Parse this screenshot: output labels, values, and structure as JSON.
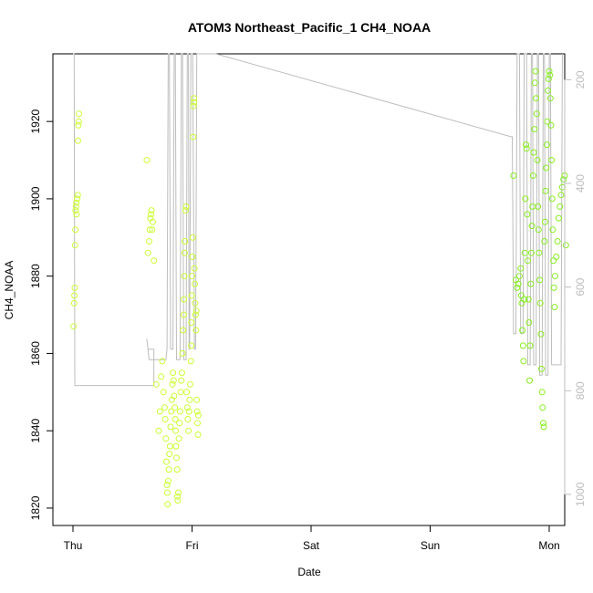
{
  "chart_data": {
    "type": "scatter",
    "title": "ATOM3 Northeast_Pacific_1 CH4_NOAA",
    "xlabel": "Date",
    "ylabel": "CH4_NOAA",
    "x_ticks": [
      "Thu",
      "Fri",
      "Sat",
      "Sun",
      "Mon"
    ],
    "x_range_days": [
      -0.08,
      4.15
    ],
    "ylim": [
      1815.5,
      1937.5
    ],
    "y_ticks": [
      1820,
      1840,
      1860,
      1880,
      1900,
      1920
    ],
    "y2_ticks": [
      200,
      400,
      600,
      800,
      1000
    ],
    "y2lim": [
      1060,
      150
    ],
    "y2_reversed": true,
    "grid": false,
    "colors": {
      "points_early": "#ccff33",
      "points_late": "#88ee22",
      "pressure_line": "#bdbdbd",
      "axis": "#000000",
      "right_axis": "#bdbdbd"
    },
    "series": [
      {
        "points": [
          [
            0.005,
            1867
          ],
          [
            0.01,
            1873
          ],
          [
            0.012,
            1875
          ],
          [
            0.015,
            1877
          ],
          [
            0.018,
            1888
          ],
          [
            0.02,
            1892
          ],
          [
            0.022,
            1897
          ],
          [
            0.025,
            1898
          ],
          [
            0.028,
            1899
          ],
          [
            0.03,
            1896
          ],
          [
            0.035,
            1900
          ],
          [
            0.04,
            1901
          ],
          [
            0.042,
            1915
          ],
          [
            0.045,
            1919
          ],
          [
            0.048,
            1920
          ],
          [
            0.05,
            1922
          ],
          [
            0.62,
            1910
          ],
          [
            0.63,
            1886
          ],
          [
            0.64,
            1889
          ],
          [
            0.645,
            1892
          ],
          [
            0.65,
            1895
          ],
          [
            0.655,
            1896
          ],
          [
            0.66,
            1897
          ],
          [
            0.665,
            1892
          ],
          [
            0.67,
            1894
          ],
          [
            0.68,
            1884
          ],
          [
            0.7,
            1852
          ],
          [
            0.72,
            1840
          ],
          [
            0.73,
            1845
          ],
          [
            0.74,
            1854
          ],
          [
            0.75,
            1858
          ],
          [
            0.76,
            1850
          ],
          [
            0.77,
            1846
          ],
          [
            0.775,
            1843
          ],
          [
            0.78,
            1838
          ],
          [
            0.785,
            1832
          ],
          [
            0.79,
            1826
          ],
          [
            0.792,
            1824
          ],
          [
            0.795,
            1821
          ],
          [
            0.8,
            1827
          ],
          [
            0.805,
            1830
          ],
          [
            0.81,
            1834
          ],
          [
            0.815,
            1836
          ],
          [
            0.82,
            1841
          ],
          [
            0.825,
            1845
          ],
          [
            0.83,
            1848
          ],
          [
            0.835,
            1852
          ],
          [
            0.84,
            1855
          ],
          [
            0.845,
            1853
          ],
          [
            0.85,
            1849
          ],
          [
            0.855,
            1846
          ],
          [
            0.86,
            1843
          ],
          [
            0.862,
            1840
          ],
          [
            0.865,
            1836
          ],
          [
            0.87,
            1833
          ],
          [
            0.875,
            1830
          ],
          [
            0.878,
            1823
          ],
          [
            0.88,
            1822
          ],
          [
            0.885,
            1824
          ],
          [
            0.89,
            1838
          ],
          [
            0.895,
            1842
          ],
          [
            0.9,
            1845
          ],
          [
            0.905,
            1850
          ],
          [
            0.91,
            1853
          ],
          [
            0.915,
            1855
          ],
          [
            0.92,
            1860
          ],
          [
            0.925,
            1866
          ],
          [
            0.93,
            1870
          ],
          [
            0.932,
            1874
          ],
          [
            0.935,
            1880
          ],
          [
            0.938,
            1886
          ],
          [
            0.94,
            1889
          ],
          [
            0.945,
            1897
          ],
          [
            0.95,
            1898
          ],
          [
            0.955,
            1850
          ],
          [
            0.96,
            1846
          ],
          [
            0.965,
            1843
          ],
          [
            0.97,
            1840
          ],
          [
            0.975,
            1845
          ],
          [
            0.98,
            1848
          ],
          [
            0.985,
            1852
          ],
          [
            0.99,
            1858
          ],
          [
            0.993,
            1862
          ],
          [
            0.995,
            1868
          ],
          [
            0.998,
            1875
          ],
          [
            1.0,
            1880
          ],
          [
            1.003,
            1885
          ],
          [
            1.006,
            1890
          ],
          [
            1.01,
            1916
          ],
          [
            1.012,
            1924
          ],
          [
            1.015,
            1926
          ],
          [
            1.018,
            1925
          ],
          [
            1.02,
            1882
          ],
          [
            1.023,
            1878
          ],
          [
            1.026,
            1873
          ],
          [
            1.03,
            1870
          ],
          [
            1.033,
            1866
          ],
          [
            1.036,
            1871
          ],
          [
            1.04,
            1848
          ],
          [
            1.043,
            1845
          ],
          [
            1.046,
            1842
          ],
          [
            1.05,
            1839
          ],
          [
            1.053,
            1844
          ]
        ],
        "color": "#ccff33"
      },
      {
        "points": [
          [
            3.7,
            1906
          ],
          [
            3.72,
            1879
          ],
          [
            3.73,
            1877
          ],
          [
            3.74,
            1878
          ],
          [
            3.75,
            1880
          ],
          [
            3.76,
            1882
          ],
          [
            3.765,
            1875
          ],
          [
            3.77,
            1873
          ],
          [
            3.775,
            1866
          ],
          [
            3.78,
            1862
          ],
          [
            3.785,
            1858
          ],
          [
            3.79,
            1874
          ],
          [
            3.795,
            1886
          ],
          [
            3.8,
            1900
          ],
          [
            3.805,
            1914
          ],
          [
            3.81,
            1913
          ],
          [
            3.815,
            1896
          ],
          [
            3.82,
            1884
          ],
          [
            3.825,
            1874
          ],
          [
            3.83,
            1868
          ],
          [
            3.835,
            1853
          ],
          [
            3.84,
            1862
          ],
          [
            3.845,
            1878
          ],
          [
            3.85,
            1886
          ],
          [
            3.855,
            1893
          ],
          [
            3.86,
            1898
          ],
          [
            3.865,
            1906
          ],
          [
            3.87,
            1912
          ],
          [
            3.875,
            1918
          ],
          [
            3.88,
            1930
          ],
          [
            3.885,
            1933
          ],
          [
            3.89,
            1926
          ],
          [
            3.895,
            1922
          ],
          [
            3.9,
            1910
          ],
          [
            3.905,
            1898
          ],
          [
            3.91,
            1892
          ],
          [
            3.915,
            1886
          ],
          [
            3.92,
            1879
          ],
          [
            3.925,
            1873
          ],
          [
            3.93,
            1865
          ],
          [
            3.935,
            1856
          ],
          [
            3.94,
            1850
          ],
          [
            3.945,
            1846
          ],
          [
            3.95,
            1842
          ],
          [
            3.955,
            1841
          ],
          [
            3.96,
            1889
          ],
          [
            3.965,
            1894
          ],
          [
            3.97,
            1902
          ],
          [
            3.975,
            1908
          ],
          [
            3.98,
            1914
          ],
          [
            3.985,
            1920
          ],
          [
            3.99,
            1928
          ],
          [
            3.995,
            1931
          ],
          [
            4.0,
            1933
          ],
          [
            4.005,
            1932
          ],
          [
            4.01,
            1926
          ],
          [
            4.015,
            1919
          ],
          [
            4.02,
            1910
          ],
          [
            4.025,
            1900
          ],
          [
            4.03,
            1892
          ],
          [
            4.035,
            1884
          ],
          [
            4.04,
            1877
          ],
          [
            4.045,
            1872
          ],
          [
            4.05,
            1880
          ],
          [
            4.06,
            1885
          ],
          [
            4.07,
            1889
          ],
          [
            4.08,
            1895
          ],
          [
            4.09,
            1898
          ],
          [
            4.1,
            1901
          ],
          [
            4.11,
            1903
          ],
          [
            4.12,
            1905
          ],
          [
            4.13,
            1906
          ],
          [
            4.14,
            1888
          ]
        ],
        "color": "#88ee22"
      }
    ],
    "pressure_line": [
      [
        0.0,
        150
      ],
      [
        0.01,
        150
      ],
      [
        0.015,
        790
      ],
      [
        0.68,
        790
      ],
      [
        0.68,
        720
      ],
      [
        0.63,
        720
      ],
      [
        0.62,
        700
      ],
      [
        0.63,
        720
      ],
      [
        0.64,
        740
      ],
      [
        0.78,
        740
      ],
      [
        0.79,
        720
      ],
      [
        0.8,
        150
      ],
      [
        0.81,
        150
      ],
      [
        0.82,
        720
      ],
      [
        0.84,
        720
      ],
      [
        0.85,
        150
      ],
      [
        0.86,
        150
      ],
      [
        0.87,
        740
      ],
      [
        0.9,
        740
      ],
      [
        0.91,
        150
      ],
      [
        0.92,
        150
      ],
      [
        0.93,
        740
      ],
      [
        0.95,
        740
      ],
      [
        0.96,
        150
      ],
      [
        0.97,
        150
      ],
      [
        0.975,
        720
      ],
      [
        0.98,
        720
      ],
      [
        0.99,
        150
      ],
      [
        1.0,
        150
      ],
      [
        1.005,
        150
      ],
      [
        1.02,
        720
      ],
      [
        1.03,
        720
      ],
      [
        1.04,
        150
      ],
      [
        1.2,
        150
      ],
      [
        3.68,
        310
      ],
      [
        3.69,
        310
      ],
      [
        3.7,
        690
      ],
      [
        3.72,
        690
      ],
      [
        3.73,
        150
      ],
      [
        3.75,
        150
      ],
      [
        3.76,
        690
      ],
      [
        3.78,
        690
      ],
      [
        3.79,
        150
      ],
      [
        3.81,
        150
      ],
      [
        3.82,
        750
      ],
      [
        3.84,
        750
      ],
      [
        3.85,
        150
      ],
      [
        3.86,
        150
      ],
      [
        3.87,
        750
      ],
      [
        3.89,
        750
      ],
      [
        3.9,
        150
      ],
      [
        3.91,
        150
      ],
      [
        3.92,
        770
      ],
      [
        3.94,
        770
      ],
      [
        3.95,
        150
      ],
      [
        3.96,
        150
      ],
      [
        3.97,
        770
      ],
      [
        3.99,
        770
      ],
      [
        4.0,
        150
      ],
      [
        4.01,
        150
      ],
      [
        4.02,
        750
      ],
      [
        4.1,
        750
      ],
      [
        4.11,
        150
      ]
    ]
  }
}
